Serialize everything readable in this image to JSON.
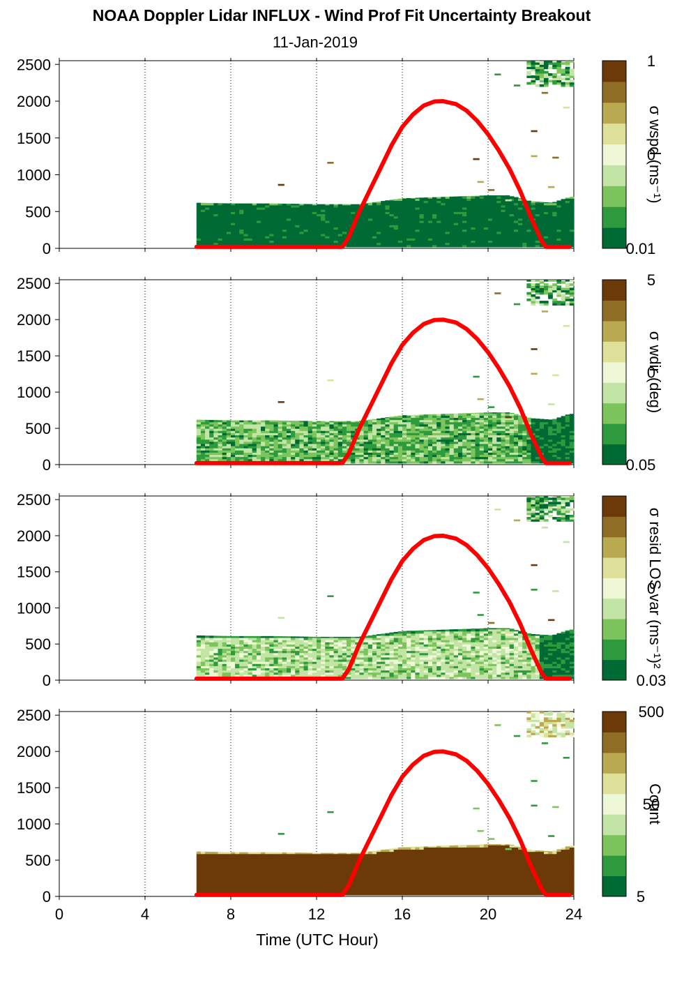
{
  "title": "NOAA Doppler Lidar INFLUX - Wind Prof Fit Uncertainty Breakout",
  "subtitle": "11-Jan-2019",
  "xlabel": "Time (UTC Hour)",
  "colors": {
    "sun_curve": "#ff0000",
    "colormap": [
      "#006a35",
      "#2e9a3e",
      "#7cc45c",
      "#c2e4a4",
      "#eef7d6",
      "#dfe09a",
      "#b9a950",
      "#8f6d24",
      "#6b3a08"
    ]
  },
  "chart_data": {
    "x_range": [
      0,
      24
    ],
    "x_ticks": [
      "0",
      "4",
      "8",
      "12",
      "16",
      "20",
      "24"
    ],
    "y_range": [
      0,
      2550
    ],
    "y_ticks": [
      "0",
      "500",
      "1000",
      "1500",
      "2000",
      "2500"
    ],
    "sun_elevation_curve": {
      "color": "#ff0000",
      "x": [
        6.4,
        13.2,
        13.5,
        14,
        14.5,
        15,
        15.5,
        16,
        16.5,
        17,
        17.5,
        17.9,
        18.5,
        19,
        19.5,
        20,
        20.5,
        21,
        21.5,
        22,
        22.5,
        22.7,
        23.8
      ],
      "y": [
        20,
        20,
        150,
        500,
        800,
        1100,
        1400,
        1650,
        1820,
        1940,
        1995,
        2000,
        1960,
        1870,
        1730,
        1550,
        1330,
        1080,
        780,
        420,
        100,
        20,
        20
      ]
    },
    "panels": [
      {
        "type": "heatmap",
        "colorbar_label": "σ wspd (ms⁻¹)",
        "colorbar_ticks": [
          "1",
          "0",
          "0.01"
        ],
        "mode": "low",
        "layer_top": [
          [
            6.4,
            620
          ],
          [
            8,
            610
          ],
          [
            10,
            610
          ],
          [
            12,
            600
          ],
          [
            14,
            600
          ],
          [
            16,
            680
          ],
          [
            18,
            700
          ],
          [
            20,
            720
          ],
          [
            21,
            720
          ],
          [
            22,
            640
          ],
          [
            23,
            620
          ],
          [
            23.8,
            700
          ]
        ]
      },
      {
        "type": "heatmap",
        "colorbar_label": "σ wdir (deg)",
        "colorbar_ticks": [
          "5",
          "0",
          "0.05"
        ],
        "mode": "mixed",
        "layer_top": [
          [
            6.4,
            620
          ],
          [
            8,
            610
          ],
          [
            10,
            610
          ],
          [
            12,
            600
          ],
          [
            14,
            600
          ],
          [
            16,
            680
          ],
          [
            18,
            700
          ],
          [
            20,
            720
          ],
          [
            21,
            720
          ],
          [
            22,
            640
          ],
          [
            23,
            620
          ],
          [
            23.8,
            700
          ]
        ]
      },
      {
        "type": "heatmap",
        "colorbar_label": "σ resid LOS var (ms⁻¹)²",
        "colorbar_ticks": [
          "0",
          "0.03"
        ],
        "mode": "light",
        "layer_top": [
          [
            6.4,
            620
          ],
          [
            8,
            610
          ],
          [
            10,
            610
          ],
          [
            12,
            600
          ],
          [
            14,
            600
          ],
          [
            16,
            680
          ],
          [
            18,
            700
          ],
          [
            20,
            720
          ],
          [
            21,
            720
          ],
          [
            22,
            640
          ],
          [
            23,
            620
          ],
          [
            23.8,
            700
          ]
        ]
      },
      {
        "type": "heatmap",
        "colorbar_label": "Count",
        "colorbar_ticks": [
          "500",
          "50",
          "5"
        ],
        "mode": "count",
        "layer_top": [
          [
            6.4,
            620
          ],
          [
            8,
            610
          ],
          [
            10,
            610
          ],
          [
            12,
            600
          ],
          [
            14,
            600
          ],
          [
            16,
            680
          ],
          [
            18,
            700
          ],
          [
            20,
            720
          ],
          [
            21,
            720
          ],
          [
            22,
            640
          ],
          [
            23,
            620
          ],
          [
            23.8,
            700
          ]
        ]
      }
    ]
  }
}
